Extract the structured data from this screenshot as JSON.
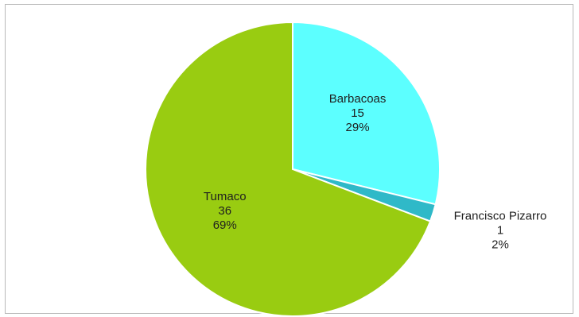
{
  "chart_data": {
    "type": "pie",
    "title": "",
    "slices": [
      {
        "name": "Barbacoas",
        "value": 15,
        "percent": "29%",
        "color": "#5cffff"
      },
      {
        "name": "Francisco Pizarro",
        "value": 1,
        "percent": "2%",
        "color": "#2fb9c8"
      },
      {
        "name": "Tumaco",
        "value": 36,
        "percent": "69%",
        "color": "#99cc11"
      }
    ],
    "start_angle_deg": 0,
    "direction": "clockwise",
    "slice_border_color": "#ffffff",
    "legend": "none"
  }
}
